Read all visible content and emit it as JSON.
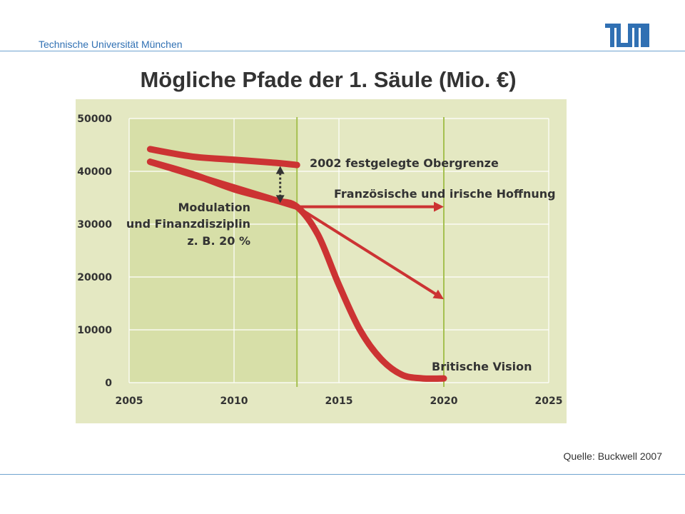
{
  "header": {
    "org_name": "Technische Universität München",
    "logo_text": "TUM"
  },
  "slide": {
    "title": "Mögliche Pfade der 1. Säule (Mio. €)",
    "source": "Quelle: Buckwell 2007"
  },
  "colors": {
    "brand_blue": "#3070b3",
    "chart_bg": "#e4e8c2",
    "chart_bg_shaded": "#d7dfa8",
    "series_red": "#cc3333",
    "highlight_line": "#a5c050"
  },
  "chart_data": {
    "type": "line",
    "xlim": [
      2005,
      2025
    ],
    "ylim": [
      0,
      50000
    ],
    "x_ticks": [
      "2005",
      "2010",
      "2015",
      "2020",
      "2025"
    ],
    "y_ticks": [
      "0",
      "10000",
      "20000",
      "30000",
      "40000",
      "50000"
    ],
    "grid": true,
    "shaded_region": [
      2005,
      2013
    ],
    "vertical_markers": [
      2013,
      2020
    ],
    "series": [
      {
        "name": "2002 festgelegte Obergrenze",
        "points": [
          [
            2006,
            44200
          ],
          [
            2008,
            42800
          ],
          [
            2010,
            42200
          ],
          [
            2012,
            41600
          ],
          [
            2013,
            41200
          ]
        ]
      },
      {
        "name": "Französische und irische Hoffnung",
        "points": [
          [
            2013,
            33300
          ],
          [
            2020,
            33300
          ]
        ],
        "arrow": true
      },
      {
        "name": "",
        "points": [
          [
            2013,
            33300
          ],
          [
            2020,
            15800
          ]
        ],
        "arrow": true
      },
      {
        "name": "Britische Vision",
        "points": [
          [
            2006,
            41800
          ],
          [
            2008,
            39500
          ],
          [
            2010,
            36600
          ],
          [
            2012,
            34500
          ],
          [
            2013,
            33300
          ],
          [
            2014,
            28000
          ],
          [
            2015,
            18500
          ],
          [
            2016,
            10000
          ],
          [
            2017,
            4500
          ],
          [
            2018,
            1500
          ],
          [
            2019,
            800
          ],
          [
            2020,
            800
          ]
        ]
      },
      {
        "name": "",
        "points": [
          [
            2006,
            41800
          ],
          [
            2013,
            33300
          ]
        ]
      }
    ],
    "annotations": {
      "cap": "2002 festgelegte Obergrenze",
      "hope": "Französische und irische Hoffnung",
      "vision": "Britische Vision",
      "modulation_1": "Modulation",
      "modulation_2": "und Finanzdisziplin",
      "modulation_3": "z. B. 20 %"
    }
  }
}
